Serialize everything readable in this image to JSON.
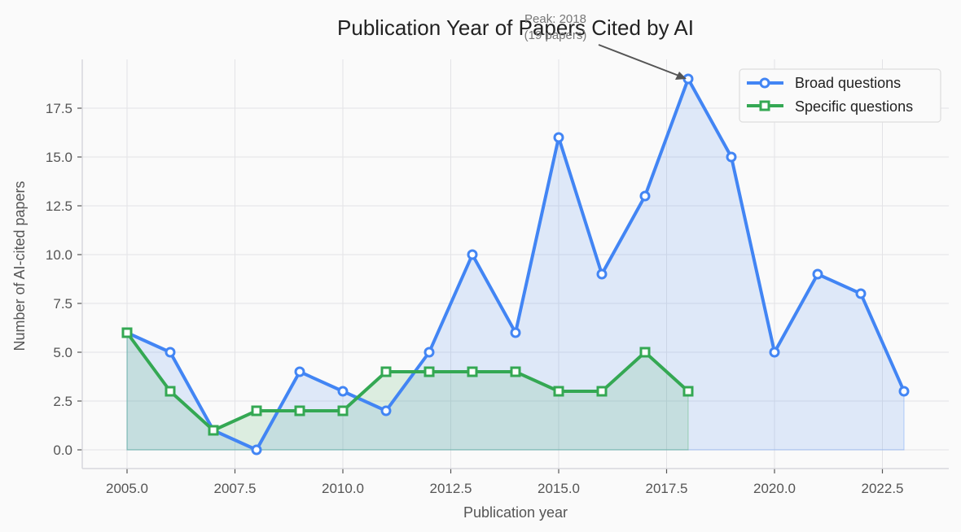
{
  "chart_data": {
    "type": "line",
    "title": "Publication Year of Papers Cited by AI",
    "xlabel": "Publication year",
    "ylabel": "Number of AI-cited papers",
    "xlim": [
      2004.0,
      2024.2
    ],
    "ylim": [
      -0.95,
      19.9
    ],
    "xticks": [
      2005.0,
      2007.5,
      2010.0,
      2012.5,
      2015.0,
      2017.5,
      2020.0,
      2022.5
    ],
    "xtick_labels": [
      "2005.0",
      "2007.5",
      "2010.0",
      "2012.5",
      "2015.0",
      "2017.5",
      "2020.0",
      "2022.5"
    ],
    "yticks": [
      0,
      2.5,
      5,
      7.5,
      10,
      12.5,
      15,
      17.5
    ],
    "ytick_labels": [
      "0.0",
      "2.5",
      "5.0",
      "7.5",
      "10.0",
      "12.5",
      "15.0",
      "17.5"
    ],
    "grid": true,
    "legend_position": "upper right",
    "series": [
      {
        "name": "Broad questions",
        "color": "#4285f4",
        "marker": "circle",
        "fill": true,
        "x": [
          2005,
          2006,
          2007,
          2008,
          2009,
          2010,
          2011,
          2012,
          2013,
          2014,
          2015,
          2016,
          2017,
          2018,
          2019,
          2020,
          2021,
          2022,
          2023
        ],
        "values": [
          6,
          5,
          1,
          0,
          4,
          3,
          2,
          5,
          10,
          6,
          16,
          9,
          13,
          19,
          15,
          5,
          9,
          8,
          3
        ]
      },
      {
        "name": "Specific questions",
        "color": "#34a853",
        "marker": "square",
        "fill": true,
        "x": [
          2005,
          2006,
          2007,
          2008,
          2009,
          2010,
          2011,
          2012,
          2013,
          2014,
          2015,
          2016,
          2017,
          2018
        ],
        "values": [
          6,
          3,
          1,
          2,
          2,
          2,
          4,
          4,
          4,
          4,
          3,
          3,
          5,
          3
        ]
      }
    ],
    "annotations": [
      {
        "text_line1": "Peak: 2018",
        "text_line2": "(19 papers)",
        "x": 2018,
        "y": 19
      }
    ]
  },
  "legend": {
    "items": [
      "Broad questions",
      "Specific questions"
    ]
  }
}
